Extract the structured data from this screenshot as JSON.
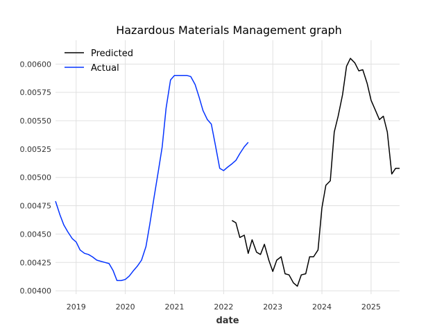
{
  "chart_data": {
    "type": "line",
    "title": "Hazardous Materials Management graph",
    "xlabel": "date",
    "ylabel": "",
    "xlim": [
      2018.58,
      2025.58
    ],
    "ylim": [
      0.00397,
      0.00621
    ],
    "x_ticks": [
      2019,
      2020,
      2021,
      2022,
      2023,
      2024,
      2025
    ],
    "x_tick_labels": [
      "2019",
      "2020",
      "2021",
      "2022",
      "2023",
      "2024",
      "2025"
    ],
    "y_ticks": [
      0.004,
      0.00425,
      0.0045,
      0.00475,
      0.005,
      0.00525,
      0.0055,
      0.00575,
      0.006
    ],
    "y_tick_labels": [
      "0.00400",
      "0.00425",
      "0.00450",
      "0.00475",
      "0.00500",
      "0.00525",
      "0.00550",
      "0.00575",
      "0.00600"
    ],
    "grid": true,
    "legend_position": "top-left",
    "series": [
      {
        "name": "Predicted",
        "color": "#000000",
        "x": [
          2022.17,
          2022.25,
          2022.33,
          2022.42,
          2022.5,
          2022.58,
          2022.67,
          2022.75,
          2022.83,
          2022.92,
          2023.0,
          2023.08,
          2023.17,
          2023.25,
          2023.33,
          2023.42,
          2023.5,
          2023.58,
          2023.67,
          2023.75,
          2023.83,
          2023.92,
          2024.0,
          2024.08,
          2024.17,
          2024.25,
          2024.33,
          2024.42,
          2024.5,
          2024.58,
          2024.67,
          2024.75,
          2024.83,
          2024.92,
          2025.0,
          2025.08,
          2025.17,
          2025.25,
          2025.33,
          2025.42,
          2025.5,
          2025.58
        ],
        "y": [
          0.00462,
          0.0046,
          0.00447,
          0.00449,
          0.00433,
          0.00445,
          0.00434,
          0.00432,
          0.00441,
          0.00427,
          0.00417,
          0.00427,
          0.0043,
          0.00415,
          0.00414,
          0.00407,
          0.00404,
          0.00414,
          0.00415,
          0.0043,
          0.0043,
          0.00436,
          0.00473,
          0.00493,
          0.00497,
          0.0054,
          0.00554,
          0.00573,
          0.00598,
          0.00605,
          0.00601,
          0.00594,
          0.00595,
          0.00583,
          0.00568,
          0.0056,
          0.00551,
          0.00554,
          0.0054,
          0.00503,
          0.00508,
          0.00508
        ]
      },
      {
        "name": "Actual",
        "color": "#0433ff",
        "x": [
          2018.58,
          2018.67,
          2018.75,
          2018.83,
          2018.92,
          2019.0,
          2019.08,
          2019.17,
          2019.25,
          2019.33,
          2019.42,
          2019.5,
          2019.58,
          2019.67,
          2019.75,
          2019.83,
          2019.92,
          2020.0,
          2020.08,
          2020.17,
          2020.25,
          2020.33,
          2020.42,
          2020.5,
          2020.58,
          2020.67,
          2020.75,
          2020.83,
          2020.92,
          2021.0,
          2021.08,
          2021.17,
          2021.25,
          2021.33,
          2021.42,
          2021.5,
          2021.58,
          2021.67,
          2021.75,
          2021.83,
          2021.92,
          2022.0,
          2022.08,
          2022.17,
          2022.25,
          2022.33,
          2022.42,
          2022.5
        ],
        "y": [
          0.00479,
          0.00467,
          0.00458,
          0.00452,
          0.00446,
          0.00443,
          0.00436,
          0.00433,
          0.00432,
          0.0043,
          0.00427,
          0.00426,
          0.00425,
          0.00424,
          0.00418,
          0.00409,
          0.00409,
          0.0041,
          0.00413,
          0.00418,
          0.00422,
          0.00427,
          0.00439,
          0.00459,
          0.00481,
          0.00505,
          0.00527,
          0.00561,
          0.00586,
          0.0059,
          0.0059,
          0.0059,
          0.0059,
          0.00589,
          0.00582,
          0.00571,
          0.00559,
          0.00551,
          0.00547,
          0.00529,
          0.00508,
          0.00506,
          0.00509,
          0.00512,
          0.00515,
          0.00521,
          0.00527,
          0.00531
        ]
      }
    ]
  }
}
